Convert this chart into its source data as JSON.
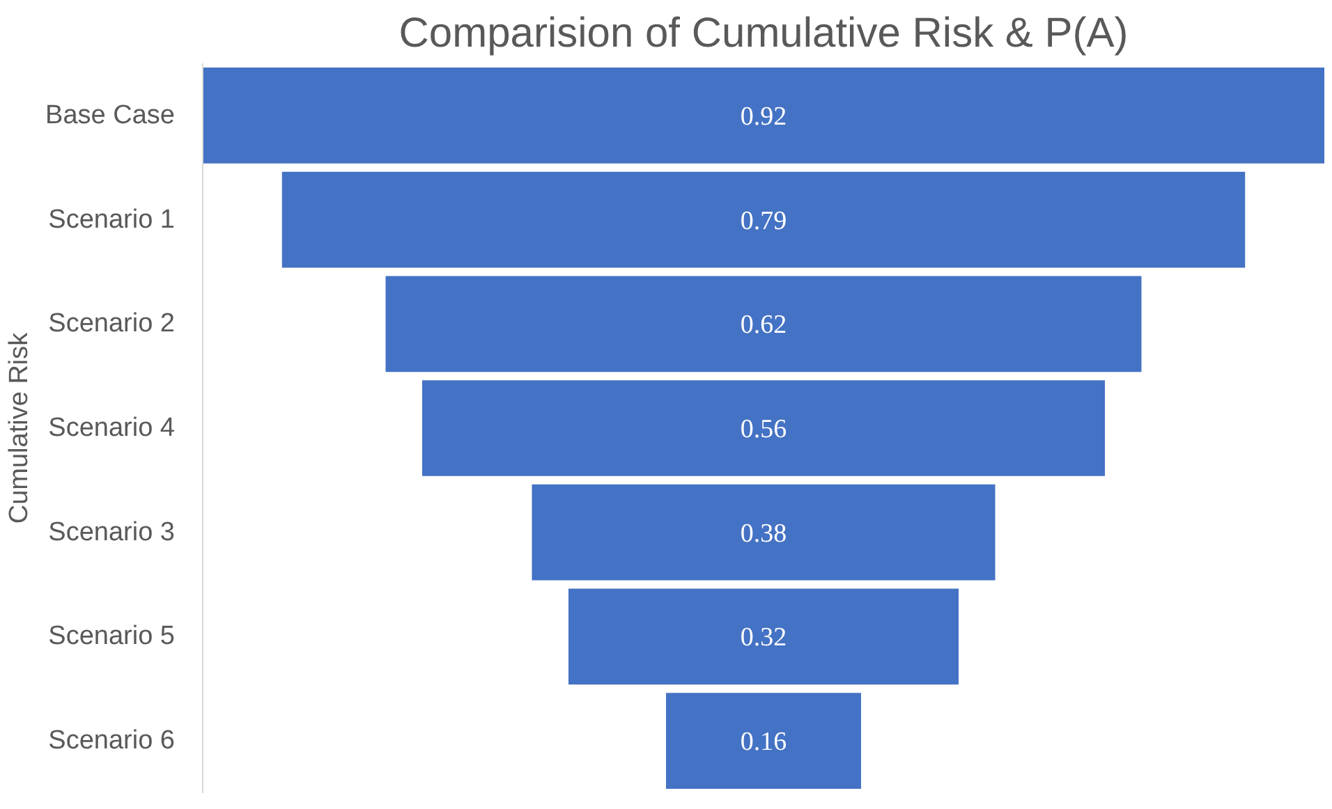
{
  "chart_data": {
    "type": "other",
    "title": "Comparision of Cumulative Risk & P(A)",
    "ylabel": "Cumulative Risk",
    "categories": [
      "Base Case",
      "Scenario 1",
      "Scenario 2",
      "Scenario 4",
      "Scenario 3",
      "Scenario 5",
      "Scenario 6"
    ],
    "values": [
      0.92,
      0.79,
      0.62,
      0.56,
      0.38,
      0.32,
      0.16
    ],
    "color": "#4472c4",
    "data_labels": true
  }
}
